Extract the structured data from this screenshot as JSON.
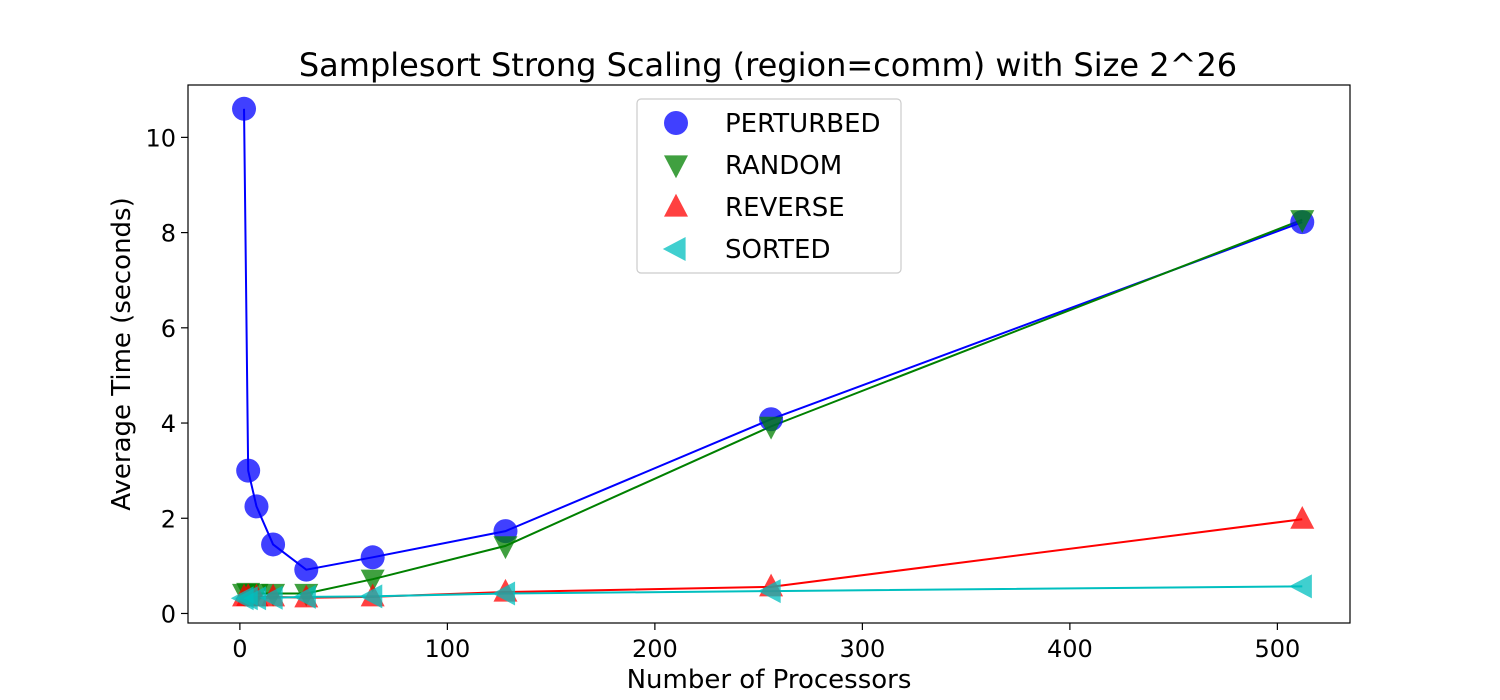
{
  "chart_data": {
    "type": "line",
    "title": "Samplesort Strong Scaling (region=comm) with Size 2^26",
    "xlabel": "Number of Processors",
    "ylabel": "Average Time (seconds)",
    "xlim": [
      -25,
      535
    ],
    "ylim": [
      -0.2,
      11.1
    ],
    "xticks": [
      0,
      100,
      200,
      300,
      400,
      500
    ],
    "yticks": [
      0,
      2,
      4,
      6,
      8,
      10
    ],
    "grid": false,
    "legend_position": "top-center",
    "x": [
      2,
      4,
      8,
      16,
      32,
      64,
      128,
      256,
      512
    ],
    "series": [
      {
        "name": "PERTURBED",
        "marker": "circle",
        "color": "#0000ff",
        "values": [
          10.6,
          3.0,
          2.25,
          1.45,
          0.92,
          1.18,
          1.73,
          4.08,
          8.22
        ]
      },
      {
        "name": "RANDOM",
        "marker": "triangle-down",
        "color": "#008000",
        "values": [
          0.42,
          0.44,
          0.42,
          0.42,
          0.42,
          0.72,
          1.42,
          3.93,
          8.27
        ]
      },
      {
        "name": "REVERSE",
        "marker": "triangle-up",
        "color": "#ff0000",
        "values": [
          0.35,
          0.36,
          0.35,
          0.35,
          0.33,
          0.35,
          0.45,
          0.56,
          1.98
        ]
      },
      {
        "name": "SORTED",
        "marker": "triangle-left",
        "color": "#00bfbf",
        "values": [
          0.32,
          0.32,
          0.32,
          0.33,
          0.35,
          0.36,
          0.42,
          0.47,
          0.57
        ]
      }
    ]
  }
}
